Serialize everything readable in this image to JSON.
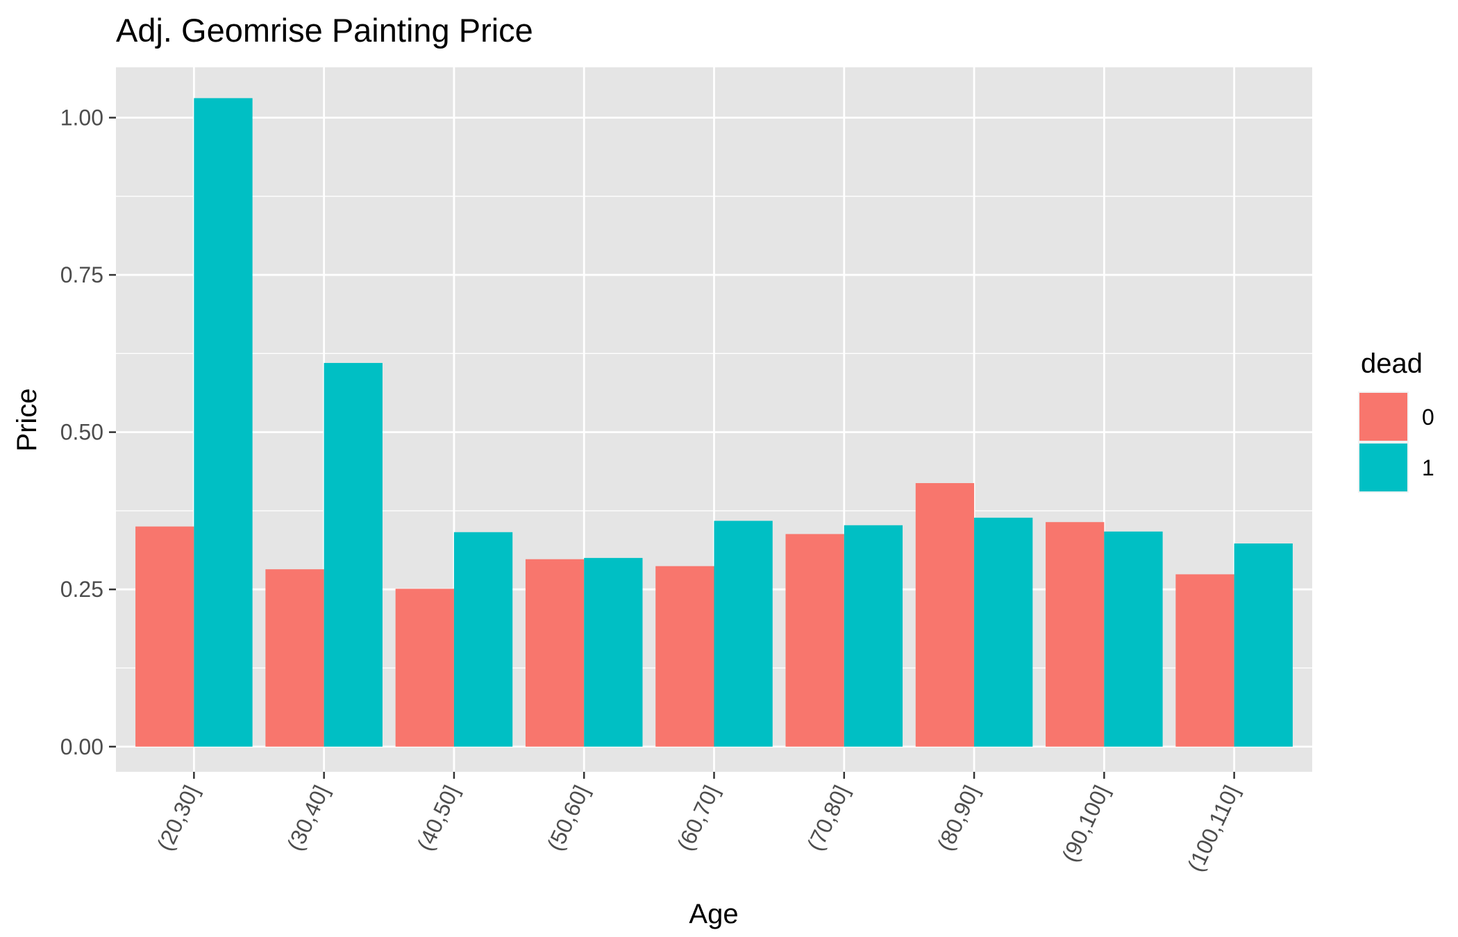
{
  "chart_data": {
    "type": "bar",
    "title": "Adj. Geomrise Painting Price",
    "xlabel": "Age",
    "ylabel": "Price",
    "ylim": [
      -0.04,
      1.08
    ],
    "yticks": [
      0,
      0.25,
      0.5,
      0.75,
      1.0
    ],
    "ytick_labels": [
      "0.00",
      "0.25",
      "0.50",
      "0.75",
      "1.00"
    ],
    "grid": true,
    "categories": [
      "(20,30]",
      "(30,40]",
      "(40,50]",
      "(50,60]",
      "(60,70]",
      "(70,80]",
      "(80,90]",
      "(90,100]",
      "(100,110]"
    ],
    "series": [
      {
        "name": "0",
        "color": "#F8766D",
        "values": [
          0.35,
          0.282,
          0.251,
          0.298,
          0.287,
          0.338,
          0.419,
          0.357,
          0.274
        ]
      },
      {
        "name": "1",
        "color": "#00BFC4",
        "values": [
          1.031,
          0.61,
          0.341,
          0.3,
          0.359,
          0.352,
          0.364,
          0.342,
          0.323
        ]
      }
    ],
    "legend": {
      "title": "dead",
      "placement": "right"
    }
  },
  "style": {
    "panel_background": "#E5E5E5",
    "grid_color": "#FFFFFF",
    "tick_color": "#333333"
  }
}
